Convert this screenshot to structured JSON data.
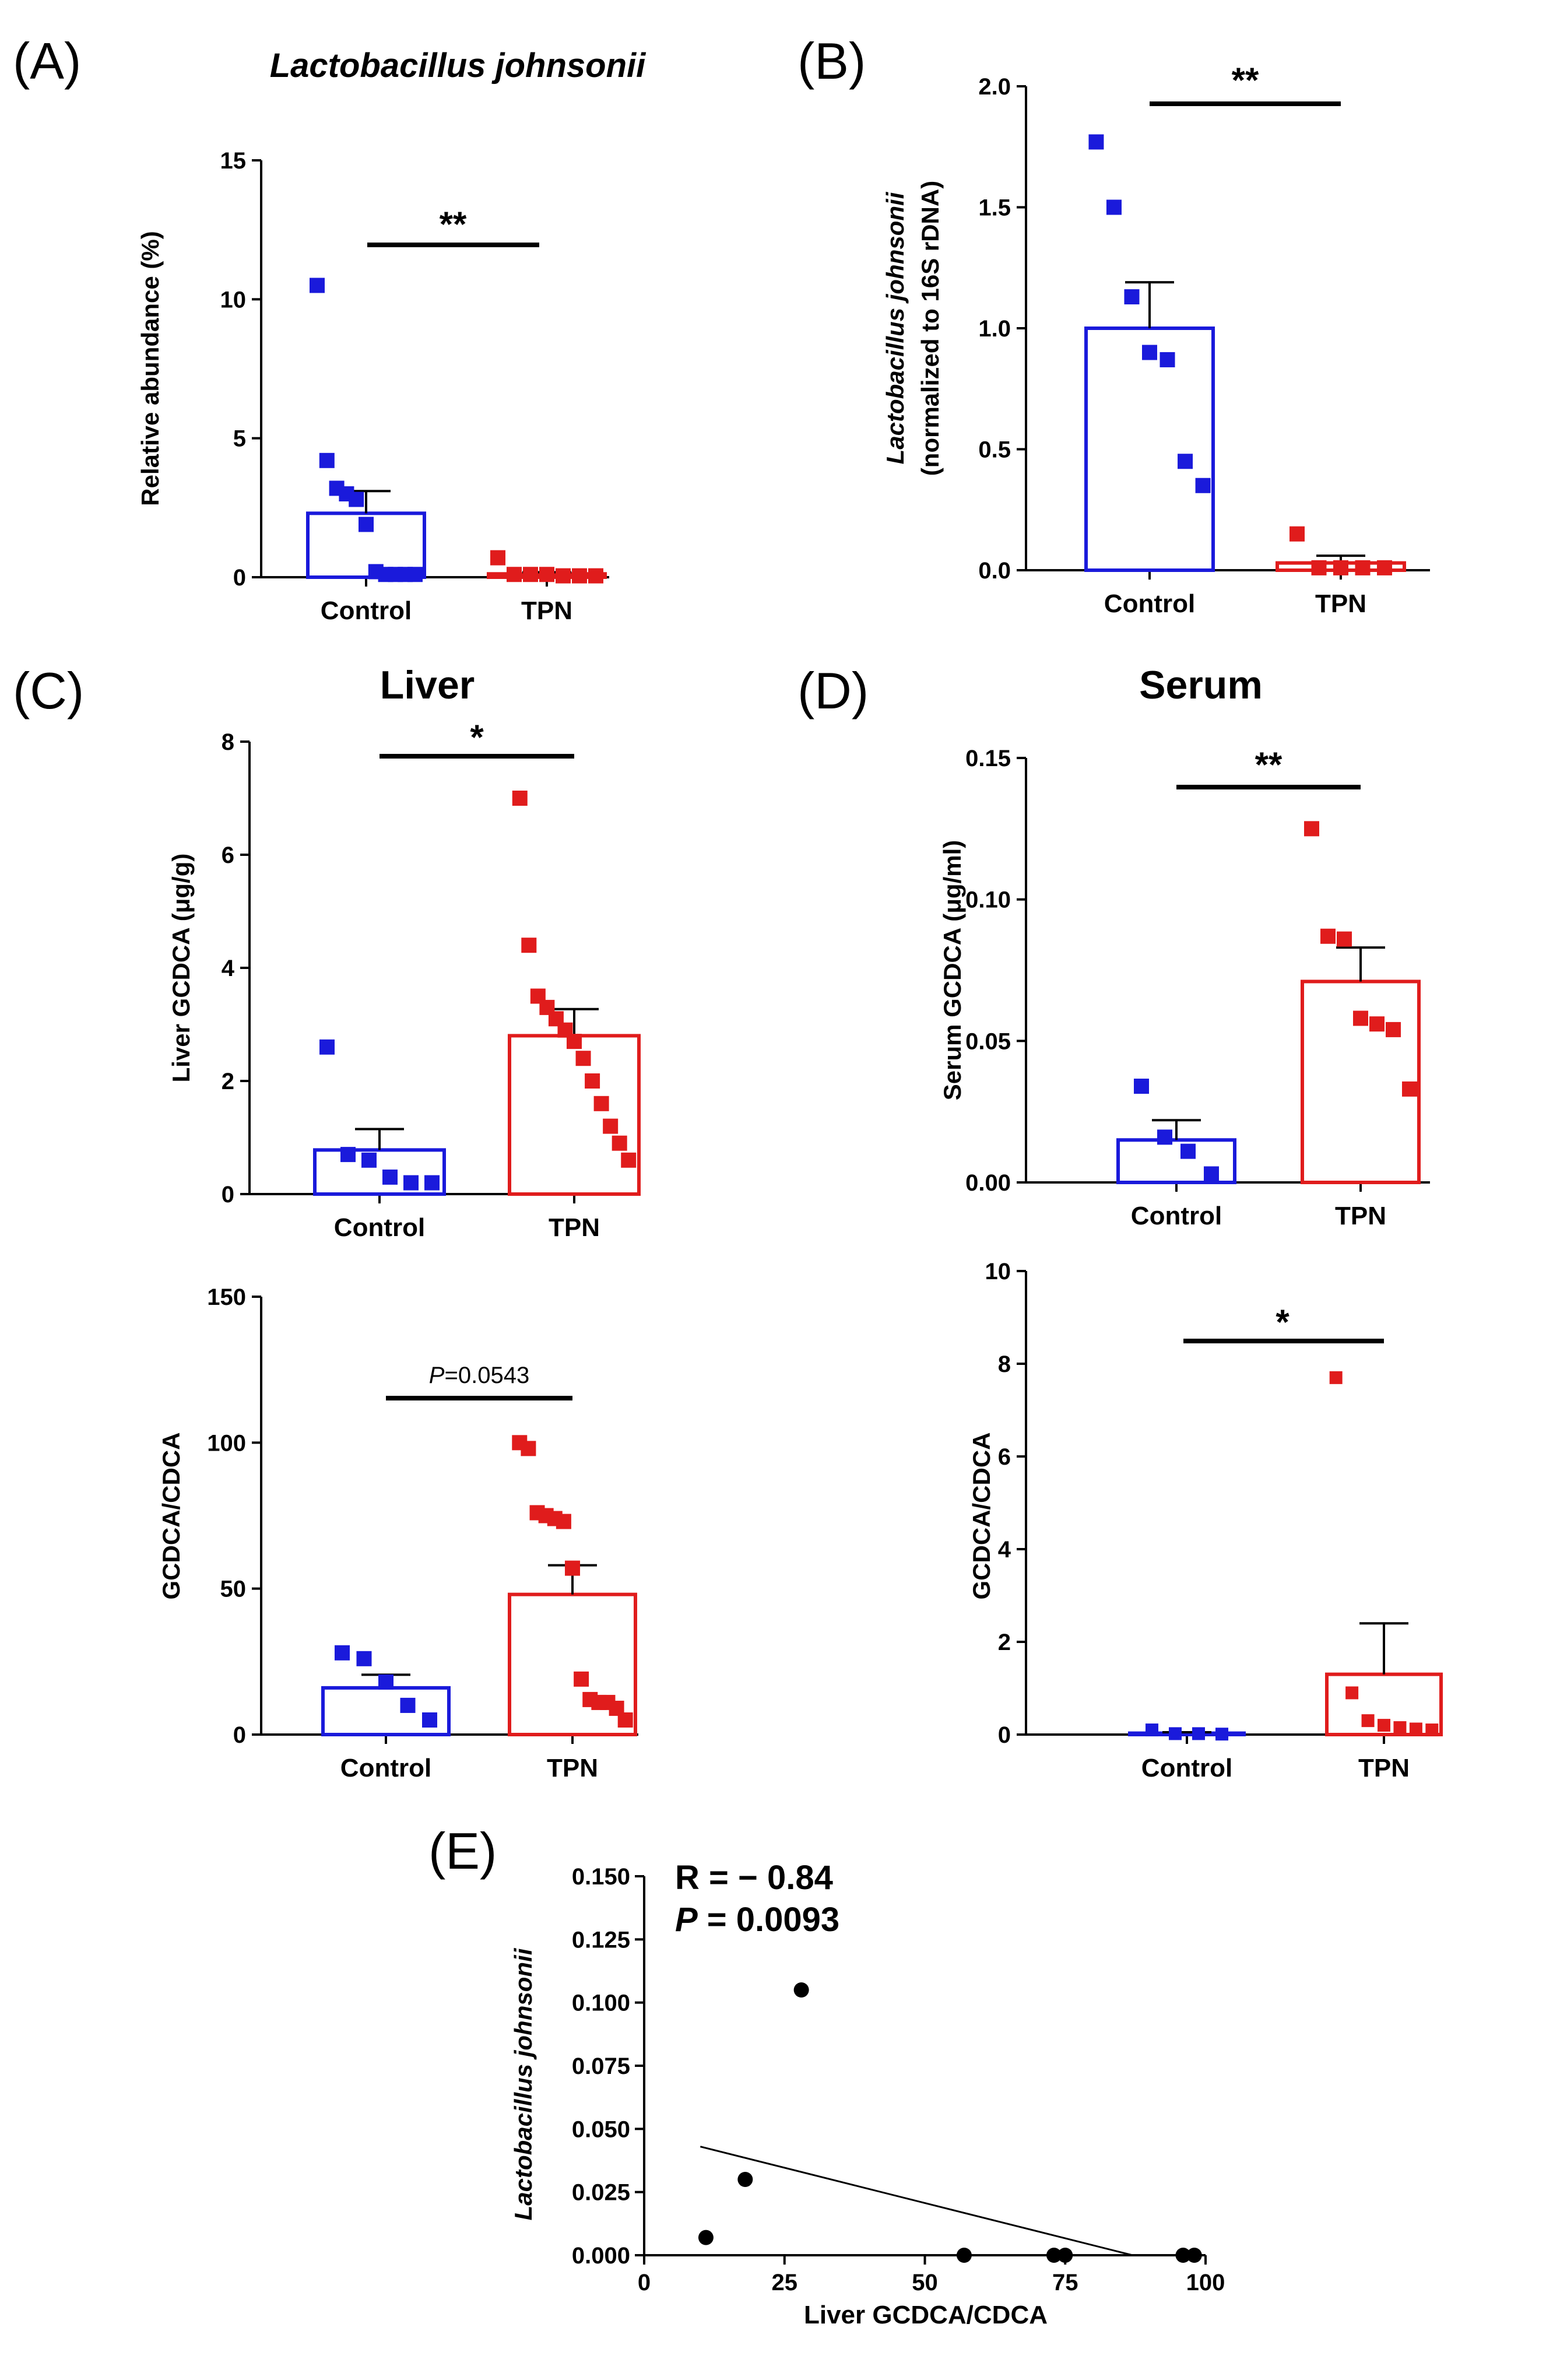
{
  "colors": {
    "control": "#1a1adb",
    "tpn": "#e01c1c",
    "point": "#000000"
  },
  "panel_labels": {
    "a": "(A)",
    "b": "(B)",
    "c": "(C)",
    "d": "(D)",
    "e": "(E)"
  },
  "section_titles": {
    "liver": "Liver",
    "serum": "Serum"
  },
  "chart_data": [
    {
      "id": "A",
      "type": "bar",
      "title": "Lactobacillus johnsonii",
      "ylabel": "Relative abundance (%)",
      "categories": [
        "Control",
        "TPN"
      ],
      "values": [
        2.3,
        0.12
      ],
      "sem": [
        0.8,
        0.06
      ],
      "points": [
        [
          10.5,
          4.2,
          3.2,
          3.0,
          2.8,
          1.9,
          0.2,
          0.1,
          0.1,
          0.1,
          0.1
        ],
        [
          0.7,
          0.1,
          0.1,
          0.1,
          0.05,
          0.05,
          0.05
        ]
      ],
      "ylim": [
        0,
        15
      ],
      "yticks": [
        0,
        5,
        10,
        15
      ],
      "significance": "**"
    },
    {
      "id": "B",
      "type": "bar",
      "ylabel_line1": "Lactobacillus johnsonii",
      "ylabel_line2": "(normalized to 16S rDNA)",
      "categories": [
        "Control",
        "TPN"
      ],
      "values": [
        1.0,
        0.03
      ],
      "sem": [
        0.19,
        0.03
      ],
      "points": [
        [
          1.77,
          1.5,
          1.13,
          0.9,
          0.87,
          0.45,
          0.35
        ],
        [
          0.15,
          0.01,
          0.01,
          0.01,
          0.01
        ]
      ],
      "ylim": [
        0,
        2.0
      ],
      "yticks": [
        "0.0",
        "0.5",
        "1.0",
        "1.5",
        "2.0"
      ],
      "significance": "**"
    },
    {
      "id": "C-top",
      "type": "bar",
      "ylabel": "Liver GCDCA (μg/g)",
      "categories": [
        "Control",
        "TPN"
      ],
      "values": [
        0.78,
        2.8
      ],
      "sem": [
        0.37,
        0.47
      ],
      "points": [
        [
          2.6,
          0.7,
          0.6,
          0.3,
          0.2,
          0.2
        ],
        [
          7.0,
          4.4,
          3.5,
          3.3,
          3.1,
          2.9,
          2.7,
          2.4,
          2.0,
          1.6,
          1.2,
          0.9,
          0.6
        ]
      ],
      "ylim": [
        0,
        8
      ],
      "yticks": [
        0,
        2,
        4,
        6,
        8
      ],
      "significance": "*"
    },
    {
      "id": "C-bottom",
      "type": "bar",
      "ylabel": "GCDCA/CDCA",
      "categories": [
        "Control",
        "TPN"
      ],
      "values": [
        16,
        48
      ],
      "sem": [
        4.5,
        10
      ],
      "points": [
        [
          28,
          26,
          18,
          10,
          5
        ],
        [
          100,
          98,
          76,
          75,
          74,
          73,
          57,
          19,
          12,
          11,
          11,
          9,
          5
        ]
      ],
      "ylim": [
        0,
        150
      ],
      "yticks": [
        0,
        50,
        100,
        150
      ],
      "significance_prefix": "P",
      "significance_value": "=0.0543"
    },
    {
      "id": "D-top",
      "type": "bar",
      "ylabel": "Serum GCDCA (μg/ml)",
      "categories": [
        "Control",
        "TPN"
      ],
      "values": [
        0.015,
        0.071
      ],
      "sem": [
        0.007,
        0.012
      ],
      "points": [
        [
          0.034,
          0.016,
          0.011,
          0.003
        ],
        [
          0.125,
          0.087,
          0.086,
          0.058,
          0.056,
          0.054,
          0.033
        ]
      ],
      "ylim": [
        0,
        0.15
      ],
      "yticks": [
        "0.00",
        "0.05",
        "0.10",
        "0.15"
      ],
      "significance": "**"
    },
    {
      "id": "D-bottom",
      "type": "bar",
      "ylabel": "GCDCA/CDCA",
      "categories": [
        "Control",
        "TPN"
      ],
      "values": [
        0.03,
        1.3
      ],
      "sem": [
        0.02,
        1.1
      ],
      "points": [
        [
          0.1,
          0.02,
          0.02,
          0.01
        ],
        [
          7.7,
          0.9,
          0.3,
          0.2,
          0.15,
          0.12,
          0.1
        ]
      ],
      "ylim": [
        0,
        10
      ],
      "yticks": [
        0,
        2,
        4,
        6,
        8,
        10
      ],
      "significance": "*"
    },
    {
      "id": "E",
      "type": "scatter",
      "xlabel": "Liver GCDCA/CDCA",
      "ylabel": "Lactobacillus johnsonii",
      "x": [
        11,
        18,
        28,
        57,
        73,
        75,
        96,
        98
      ],
      "y": [
        0.007,
        0.03,
        0.105,
        0.0,
        0.0,
        0.0,
        0.0,
        0.0
      ],
      "fit_line": {
        "x": [
          10,
          87
        ],
        "y": [
          0.043,
          0.0
        ]
      },
      "xlim": [
        0,
        100
      ],
      "ylim": [
        0,
        0.15
      ],
      "xticks": [
        0,
        25,
        50,
        75,
        100
      ],
      "yticks": [
        "0.000",
        "0.025",
        "0.050",
        "0.075",
        "0.100",
        "0.125",
        "0.150"
      ],
      "stat_r_label": "R = ",
      "stat_r_value": "− 0.84",
      "stat_p_label": "P",
      "stat_p_value": " = 0.0093"
    }
  ]
}
